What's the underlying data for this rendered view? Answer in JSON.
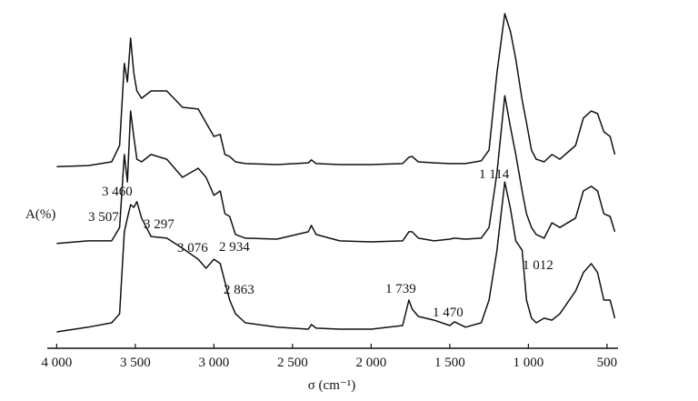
{
  "chart_data": {
    "type": "line",
    "ylabel": "A(%)",
    "xlabel": "σ (cm⁻¹)",
    "xlim": [
      4060,
      430
    ],
    "ylim": [
      0,
      100
    ],
    "xticks": [
      {
        "value": 4000,
        "label": "4 000"
      },
      {
        "value": 3500,
        "label": "3 500"
      },
      {
        "value": 3000,
        "label": "3 000"
      },
      {
        "value": 2500,
        "label": "2 500"
      },
      {
        "value": 2000,
        "label": "2 000"
      },
      {
        "value": 1500,
        "label": "1 500"
      },
      {
        "value": 1000,
        "label": "1 000"
      },
      500
    ],
    "annotations": [
      "3 507",
      "3 460",
      "3 297",
      "3 076",
      "2 934",
      "2 863",
      "1 739",
      "1 470",
      "1 114",
      "1 012"
    ],
    "x": [
      4000,
      3800,
      3650,
      3600,
      3570,
      3550,
      3530,
      3510,
      3490,
      3460,
      3400,
      3300,
      3200,
      3100,
      3050,
      3000,
      2960,
      2930,
      2900,
      2863,
      2800,
      2600,
      2400,
      2380,
      2350,
      2200,
      2000,
      1800,
      1760,
      1739,
      1700,
      1600,
      1500,
      1470,
      1400,
      1300,
      1250,
      1200,
      1150,
      1114,
      1080,
      1040,
      1012,
      980,
      950,
      900,
      850,
      800,
      700,
      650,
      600,
      560,
      520,
      480,
      450
    ],
    "series": [
      {
        "color": "#111111",
        "values": [
          54.3,
          54.6,
          55.7,
          60.6,
          85.1,
          79.6,
          92.7,
          82.3,
          76.9,
          74.7,
          76.9,
          76.9,
          72.0,
          71.5,
          67.4,
          63.3,
          63.9,
          57.9,
          57.3,
          55.7,
          55.2,
          54.9,
          55.4,
          56.3,
          55.2,
          54.9,
          54.9,
          55.2,
          57.1,
          57.3,
          55.7,
          55.4,
          55.2,
          55.2,
          55.2,
          56.0,
          59.2,
          82.3,
          100,
          94.6,
          86.4,
          74.2,
          67.4,
          59.2,
          56.5,
          55.7,
          57.9,
          56.5,
          60.6,
          68.8,
          70.9,
          70.1,
          64.7,
          63.3,
          57.9
        ]
      },
      {
        "color": "#111111",
        "values": [
          31.3,
          32.1,
          32.1,
          36.1,
          57.9,
          49.7,
          70.9,
          63.3,
          56.5,
          55.7,
          57.9,
          56.5,
          51.1,
          53.8,
          51.1,
          45.7,
          47.0,
          40.2,
          39.4,
          34.0,
          32.9,
          32.6,
          34.8,
          36.7,
          34.0,
          32.1,
          31.8,
          32.1,
          34.8,
          34.8,
          32.9,
          32.1,
          32.6,
          32.9,
          32.6,
          32.9,
          36.1,
          52.4,
          75.5,
          66.0,
          57.9,
          47.0,
          40.2,
          36.1,
          34.0,
          32.9,
          37.5,
          36.1,
          38.9,
          47.0,
          48.4,
          47.0,
          40.2,
          39.4,
          34.8
        ]
      },
      {
        "color": "#111111",
        "values": [
          4.9,
          6.3,
          7.6,
          10.3,
          34.8,
          38.9,
          42.9,
          42.1,
          43.8,
          38.9,
          33.4,
          32.9,
          29.9,
          26.6,
          23.9,
          26.6,
          25.3,
          19.8,
          14.4,
          10.3,
          7.6,
          6.3,
          5.7,
          7.1,
          6.0,
          5.7,
          5.7,
          6.8,
          14.4,
          11.7,
          9.5,
          8.4,
          6.8,
          7.9,
          6.3,
          7.6,
          14.4,
          29.3,
          49.7,
          41.6,
          32.1,
          29.3,
          14.4,
          9.0,
          7.6,
          9.0,
          8.4,
          10.3,
          17.1,
          22.6,
          25.3,
          22.6,
          14.4,
          14.4,
          9.0
        ]
      }
    ]
  }
}
